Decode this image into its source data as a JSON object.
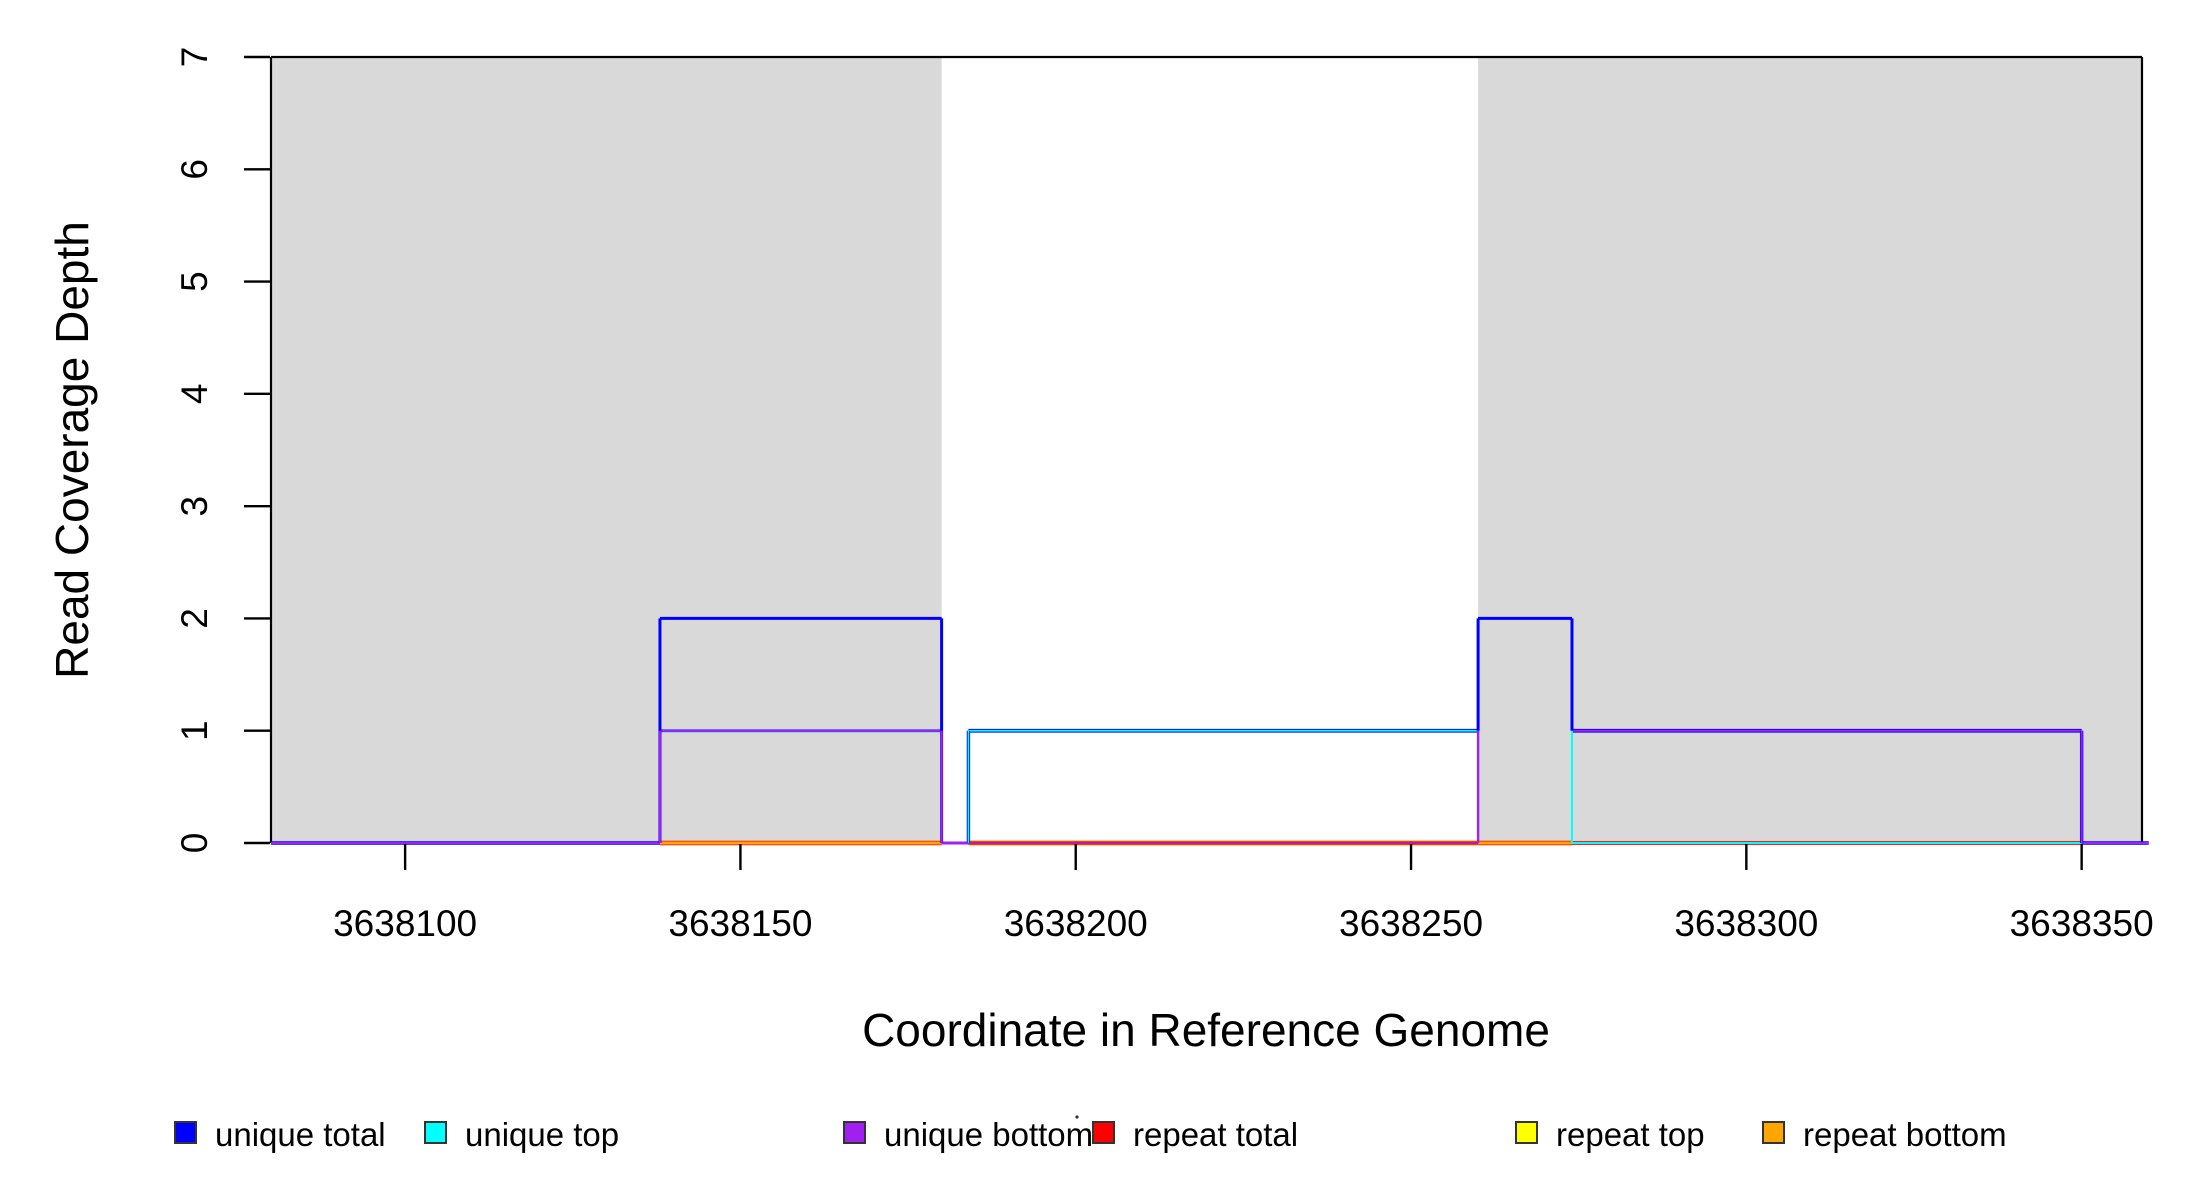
{
  "chart_data": {
    "type": "line",
    "subtype": "step-coverage-plot",
    "title": "",
    "xlabel": "Coordinate in Reference Genome",
    "ylabel": "Read Coverage Depth",
    "xlim": [
      3638080,
      3638359
    ],
    "ylim": [
      0,
      7
    ],
    "x_ticks": [
      "3638100",
      "3638150",
      "3638200",
      "3638250",
      "3638300",
      "3638350"
    ],
    "x_tick_values": [
      3638100,
      3638150,
      3638200,
      3638250,
      3638300,
      3638350
    ],
    "y_ticks": [
      "0",
      "1",
      "2",
      "3",
      "4",
      "5",
      "6",
      "7"
    ],
    "y_tick_values": [
      0,
      1,
      2,
      3,
      4,
      5,
      6,
      7
    ],
    "grid": "off",
    "legend_position": "bottom-horizontal",
    "repeat_region_color": "#d9d9d9",
    "repeat_regions": [
      {
        "start": 3638080,
        "end": 3638180
      },
      {
        "start": 3638260,
        "end": 3638359
      }
    ],
    "series": [
      {
        "name": "unique total",
        "color": "#0000ff",
        "steps": [
          [
            3638080,
            0
          ],
          [
            3638138,
            2
          ],
          [
            3638180,
            0
          ],
          [
            3638184,
            1
          ],
          [
            3638260,
            2
          ],
          [
            3638274,
            1
          ],
          [
            3638350,
            0
          ],
          [
            3638359,
            0
          ]
        ]
      },
      {
        "name": "unique top",
        "color": "#00ffff",
        "steps": [
          [
            3638080,
            0
          ],
          [
            3638138,
            1
          ],
          [
            3638180,
            0
          ],
          [
            3638184,
            1
          ],
          [
            3638274,
            0
          ],
          [
            3638359,
            0
          ]
        ]
      },
      {
        "name": "unique bottom",
        "color": "#a020f0",
        "steps": [
          [
            3638080,
            0
          ],
          [
            3638138,
            1
          ],
          [
            3638180,
            0
          ],
          [
            3638260,
            1
          ],
          [
            3638350,
            0
          ],
          [
            3638359,
            0
          ]
        ]
      },
      {
        "name": "repeat total",
        "color": "#ff0000",
        "steps": [
          [
            3638080,
            0
          ],
          [
            3638359,
            0
          ]
        ]
      },
      {
        "name": "repeat top",
        "color": "#ffff00",
        "steps": [
          [
            3638080,
            0
          ],
          [
            3638359,
            0
          ]
        ]
      },
      {
        "name": "repeat bottom",
        "color": "#ffa500",
        "steps": [
          [
            3638080,
            0
          ],
          [
            3638359,
            0
          ]
        ]
      }
    ],
    "legend": [
      {
        "label": "unique total",
        "color": "#0000ff"
      },
      {
        "label": "unique top",
        "color": "#00ffff"
      },
      {
        "label": "unique bottom",
        "color": "#a020f0"
      },
      {
        "label": "repeat total",
        "color": "#ff0000"
      },
      {
        "label": "repeat top",
        "color": "#ffff00"
      },
      {
        "label": "repeat bottom",
        "color": "#ffa500"
      }
    ]
  }
}
